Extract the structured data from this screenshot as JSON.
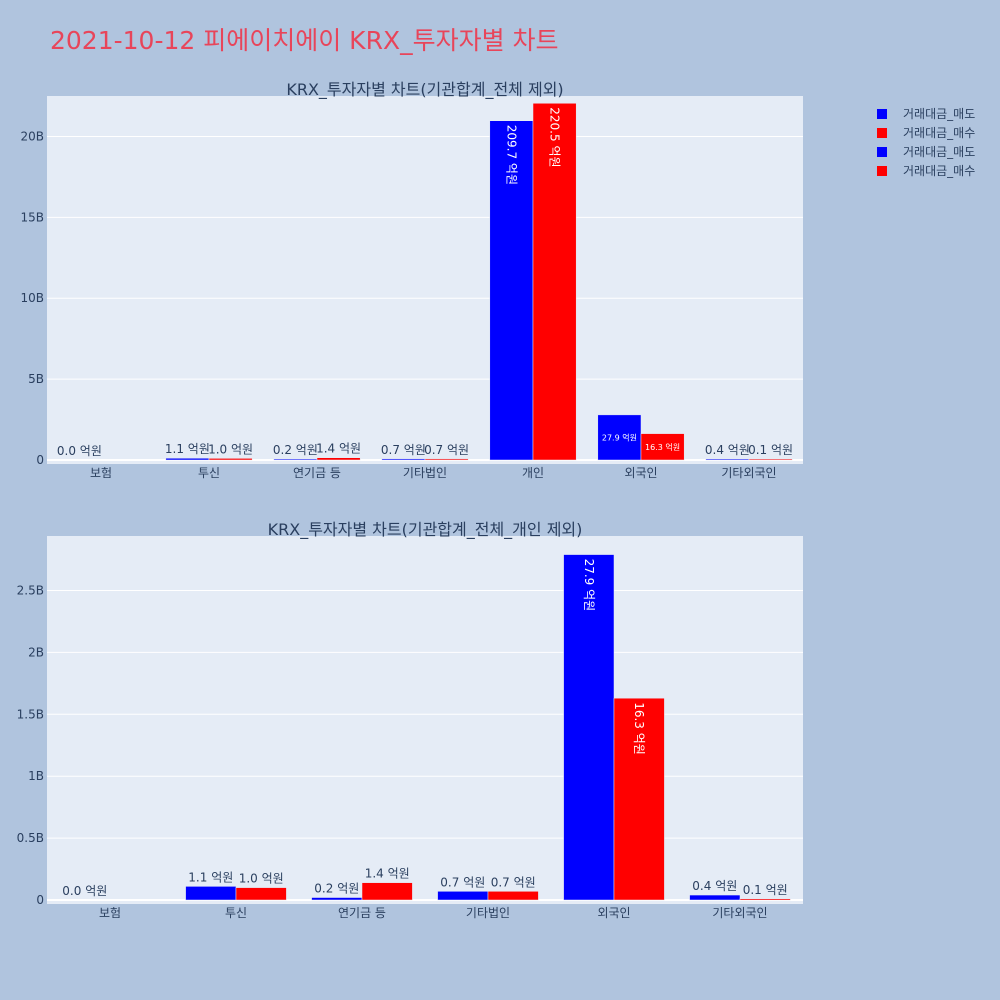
{
  "title": "2021-10-12 피에이치에이 KRX_투자자별 차트",
  "legend": [
    {
      "name": "거래대금_매도",
      "color": "#0000ff"
    },
    {
      "name": "거래대금_매수",
      "color": "#ff0000"
    },
    {
      "name": "거래대금_매도",
      "color": "#0000ff"
    },
    {
      "name": "거래대금_매수",
      "color": "#ff0000"
    }
  ],
  "chart_data": [
    {
      "type": "bar",
      "title": "KRX_투자자별 차트(기관합계_전체 제외)",
      "categories": [
        "보험",
        "투신",
        "연기금 등",
        "기타법인",
        "개인",
        "외국인",
        "기타외국인"
      ],
      "series": [
        {
          "name": "거래대금_매도",
          "color": "#0000ff",
          "values": [
            0,
            110000000,
            20000000,
            70000000,
            20970000000,
            2790000000,
            40000000
          ],
          "labels": [
            "0.0 억원",
            "1.1 억원",
            "0.2 억원",
            "0.7 억원",
            "209.7 억원",
            "27.9 억원",
            "0.4 억원"
          ]
        },
        {
          "name": "거래대금_매수",
          "color": "#ff0000",
          "values": [
            0,
            100000000,
            140000000,
            70000000,
            22050000000,
            1630000000,
            10000000
          ],
          "labels": [
            "",
            "1.0 억원",
            "1.4 억원",
            "0.7 억원",
            "220.5 억원",
            "16.3 억원",
            "0.1 억원"
          ]
        }
      ],
      "ylim": [
        0,
        22500000000
      ],
      "yticks": [
        0,
        5000000000,
        10000000000,
        15000000000,
        20000000000
      ],
      "ytick_labels": [
        "0",
        "5B",
        "10B",
        "15B",
        "20B"
      ]
    },
    {
      "type": "bar",
      "title": "KRX_투자자별 차트(기관합계_전체_개인 제외)",
      "categories": [
        "보험",
        "투신",
        "연기금 등",
        "기타법인",
        "외국인",
        "기타외국인"
      ],
      "series": [
        {
          "name": "거래대금_매도",
          "color": "#0000ff",
          "values": [
            0,
            110000000,
            20000000,
            70000000,
            2790000000,
            40000000
          ],
          "labels": [
            "0.0 억원",
            "1.1 억원",
            "0.2 억원",
            "0.7 억원",
            "27.9 억원",
            "0.4 억원"
          ]
        },
        {
          "name": "거래대금_매수",
          "color": "#ff0000",
          "values": [
            0,
            100000000,
            140000000,
            70000000,
            1630000000,
            10000000
          ],
          "labels": [
            "",
            "1.0 억원",
            "1.4 억원",
            "0.7 억원",
            "16.3 억원",
            "0.1 억원"
          ]
        }
      ],
      "ylim": [
        0,
        2940000000
      ],
      "yticks": [
        0,
        500000000,
        1000000000,
        1500000000,
        2000000000,
        2500000000
      ],
      "ytick_labels": [
        "0",
        "0.5B",
        "1B",
        "1.5B",
        "2B",
        "2.5B"
      ]
    }
  ]
}
